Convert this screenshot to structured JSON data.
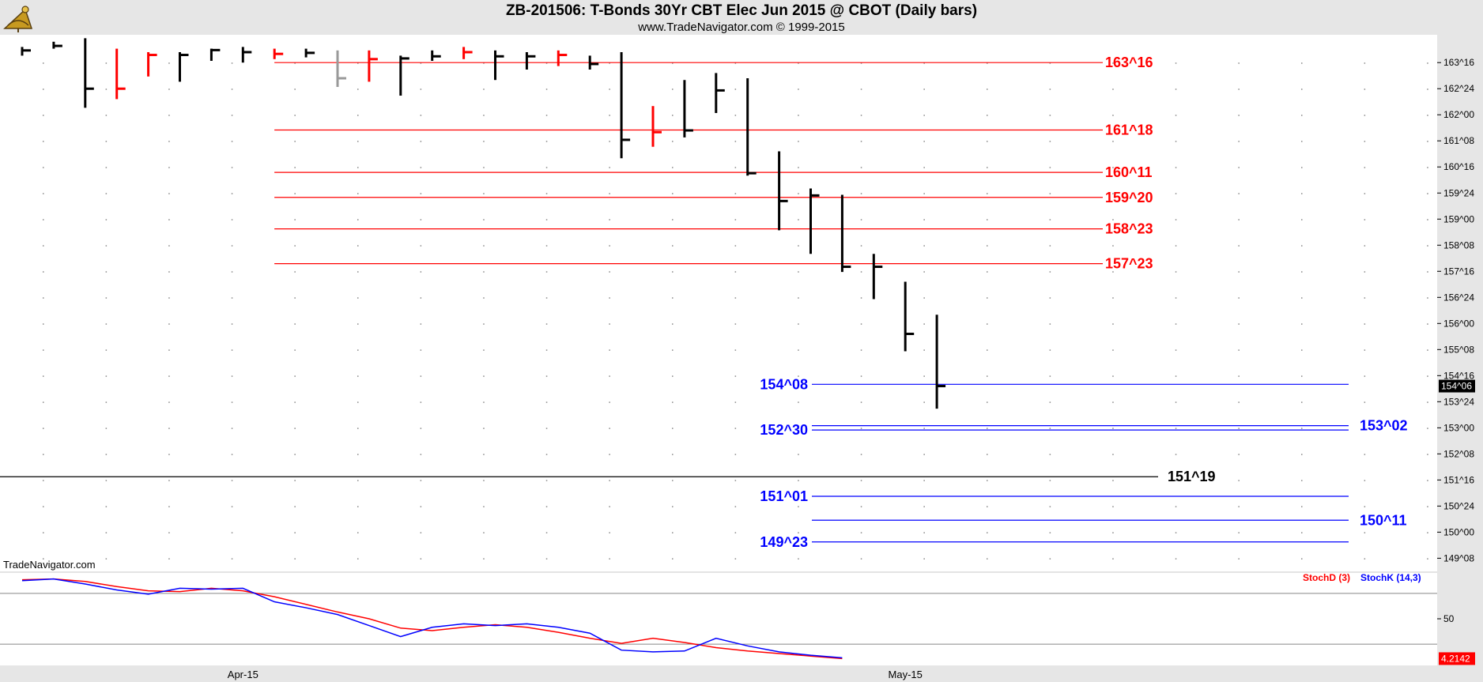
{
  "header": {
    "title": "ZB-201506:  T-Bonds 30Yr CBT Elec Jun 2015 @ CBOT  (Daily bars)",
    "subtitle": "www.TradeNavigator.com © 1999-2015"
  },
  "watermark": "TradeNavigator.com",
  "colors": {
    "up_bar": "#000000",
    "down_bar": "#ff0000",
    "fib_red": "#ff0000",
    "level_blue": "#0000ff",
    "stoch_d": "#ff0000",
    "stoch_k": "#0000ff",
    "price_tag_bg": "#000000",
    "stoch_tag_bg": "#ff0000",
    "axis_bg": "#e6e6e6"
  },
  "chart_data": [
    {
      "type": "ohlc",
      "panel": "price",
      "price_unit": "32nds",
      "y_range_dec": [
        148.85,
        164.3
      ],
      "y_ticks": [
        "163^16",
        "162^24",
        "162^00",
        "161^08",
        "160^16",
        "159^24",
        "159^00",
        "158^08",
        "157^16",
        "156^24",
        "156^00",
        "155^08",
        "154^16",
        "153^24",
        "153^00",
        "152^08",
        "151^16",
        "150^24",
        "150^00",
        "149^08"
      ],
      "current_price_label": "154^06",
      "bars": [
        {
          "h": 163.95,
          "l": 163.7,
          "c": 163.85,
          "color": "up"
        },
        {
          "h": 164.1,
          "l": 163.9,
          "c": 163.98,
          "color": "up"
        },
        {
          "h": 164.2,
          "l": 162.2,
          "c": 162.75,
          "color": "up"
        },
        {
          "h": 163.9,
          "l": 162.45,
          "c": 162.75,
          "color": "down"
        },
        {
          "h": 163.8,
          "l": 163.1,
          "c": 163.72,
          "color": "down"
        },
        {
          "h": 163.8,
          "l": 162.95,
          "c": 163.72,
          "color": "up"
        },
        {
          "h": 163.9,
          "l": 163.55,
          "c": 163.86,
          "color": "up"
        },
        {
          "h": 163.95,
          "l": 163.5,
          "c": 163.8,
          "color": "up"
        },
        {
          "h": 163.9,
          "l": 163.6,
          "c": 163.75,
          "color": "down"
        },
        {
          "h": 163.9,
          "l": 163.65,
          "c": 163.78,
          "color": "up"
        },
        {
          "h": 163.85,
          "l": 162.8,
          "c": 163.05,
          "color": "gray"
        },
        {
          "h": 163.85,
          "l": 162.95,
          "c": 163.6,
          "color": "down"
        },
        {
          "h": 163.7,
          "l": 162.55,
          "c": 163.62,
          "color": "up"
        },
        {
          "h": 163.85,
          "l": 163.55,
          "c": 163.68,
          "color": "up"
        },
        {
          "h": 163.95,
          "l": 163.6,
          "c": 163.8,
          "color": "down"
        },
        {
          "h": 163.85,
          "l": 163.0,
          "c": 163.68,
          "color": "up"
        },
        {
          "h": 163.8,
          "l": 163.3,
          "c": 163.68,
          "color": "up"
        },
        {
          "h": 163.85,
          "l": 163.4,
          "c": 163.72,
          "color": "down"
        },
        {
          "h": 163.7,
          "l": 163.3,
          "c": 163.46,
          "color": "up"
        },
        {
          "h": 163.8,
          "l": 160.75,
          "c": 161.28,
          "color": "up"
        },
        {
          "h": 162.25,
          "l": 161.08,
          "c": 161.5,
          "color": "down"
        },
        {
          "h": 163.0,
          "l": 161.35,
          "c": 161.55,
          "color": "up"
        },
        {
          "h": 163.2,
          "l": 162.05,
          "c": 162.7,
          "color": "up"
        },
        {
          "h": 163.05,
          "l": 160.25,
          "c": 160.32,
          "color": "up"
        },
        {
          "h": 160.95,
          "l": 158.68,
          "c": 159.52,
          "color": "up"
        },
        {
          "h": 159.88,
          "l": 158.0,
          "c": 159.68,
          "color": "up"
        },
        {
          "h": 159.7,
          "l": 157.48,
          "c": 157.63,
          "color": "up"
        },
        {
          "h": 158.0,
          "l": 156.7,
          "c": 157.63,
          "color": "up"
        },
        {
          "h": 157.2,
          "l": 155.2,
          "c": 155.7,
          "color": "up"
        },
        {
          "h": 156.25,
          "l": 153.55,
          "c": 154.2,
          "color": "up"
        }
      ],
      "levels": [
        {
          "label": "163^16",
          "value": 163.5,
          "color": "red",
          "side": "right",
          "labelx": "mid",
          "x_from_bar": 9,
          "x_to_bar": 25
        },
        {
          "label": "161^18",
          "value": 161.5625,
          "color": "red",
          "side": "right",
          "labelx": "mid",
          "x_from_bar": 9,
          "x_to_bar": 25
        },
        {
          "label": "160^11",
          "value": 160.34375,
          "color": "red",
          "side": "right",
          "labelx": "mid",
          "x_from_bar": 9,
          "x_to_bar": 25
        },
        {
          "label": "159^20",
          "value": 159.625,
          "color": "red",
          "side": "right",
          "labelx": "mid",
          "x_from_bar": 9,
          "x_to_bar": 25
        },
        {
          "label": "158^23",
          "value": 158.71875,
          "color": "red",
          "side": "right",
          "labelx": "mid",
          "x_from_bar": 9,
          "x_to_bar": 25
        },
        {
          "label": "157^23",
          "value": 157.71875,
          "color": "red",
          "side": "right",
          "labelx": "mid",
          "x_from_bar": 9,
          "x_to_bar": 25
        },
        {
          "label": "154^08",
          "value": 154.25,
          "color": "blue",
          "side": "left"
        },
        {
          "label": "153^02",
          "value": 153.0625,
          "color": "blue",
          "side": "right"
        },
        {
          "label": "152^30",
          "value": 152.9375,
          "color": "blue",
          "side": "left"
        },
        {
          "label": "151^19",
          "value": 151.59375,
          "color": "black",
          "side": "right"
        },
        {
          "label": "151^01",
          "value": 151.03125,
          "color": "blue",
          "side": "left"
        },
        {
          "label": "150^11",
          "value": 150.34375,
          "color": "blue",
          "side": "right"
        },
        {
          "label": "149^23",
          "value": 149.71875,
          "color": "blue",
          "side": "left"
        }
      ],
      "x_labels": [
        {
          "label": "Apr-15",
          "bar": 7
        },
        {
          "label": "May-15",
          "bar": 28
        }
      ]
    },
    {
      "type": "line",
      "panel": "stochastic",
      "y_range": [
        -5,
        105
      ],
      "y_ticks": [
        "50"
      ],
      "guide_lines": [
        80,
        20
      ],
      "current_value_label": "4.2142",
      "series": [
        {
          "name": "StochD (3)",
          "color": "red",
          "values": [
            96,
            97,
            94,
            88,
            83,
            82,
            86,
            83,
            76,
            67,
            58,
            50,
            39,
            36,
            40,
            43,
            40,
            34,
            27,
            21,
            27,
            22,
            16,
            12,
            9,
            6,
            3
          ]
        },
        {
          "name": "StochK (14,3)",
          "color": "blue",
          "values": [
            95,
            97,
            91,
            84,
            79,
            86,
            85,
            86,
            70,
            63,
            55,
            42,
            29,
            40,
            44,
            42,
            44,
            40,
            33,
            13,
            11,
            12,
            27,
            18,
            11,
            7,
            4
          ]
        }
      ]
    }
  ]
}
